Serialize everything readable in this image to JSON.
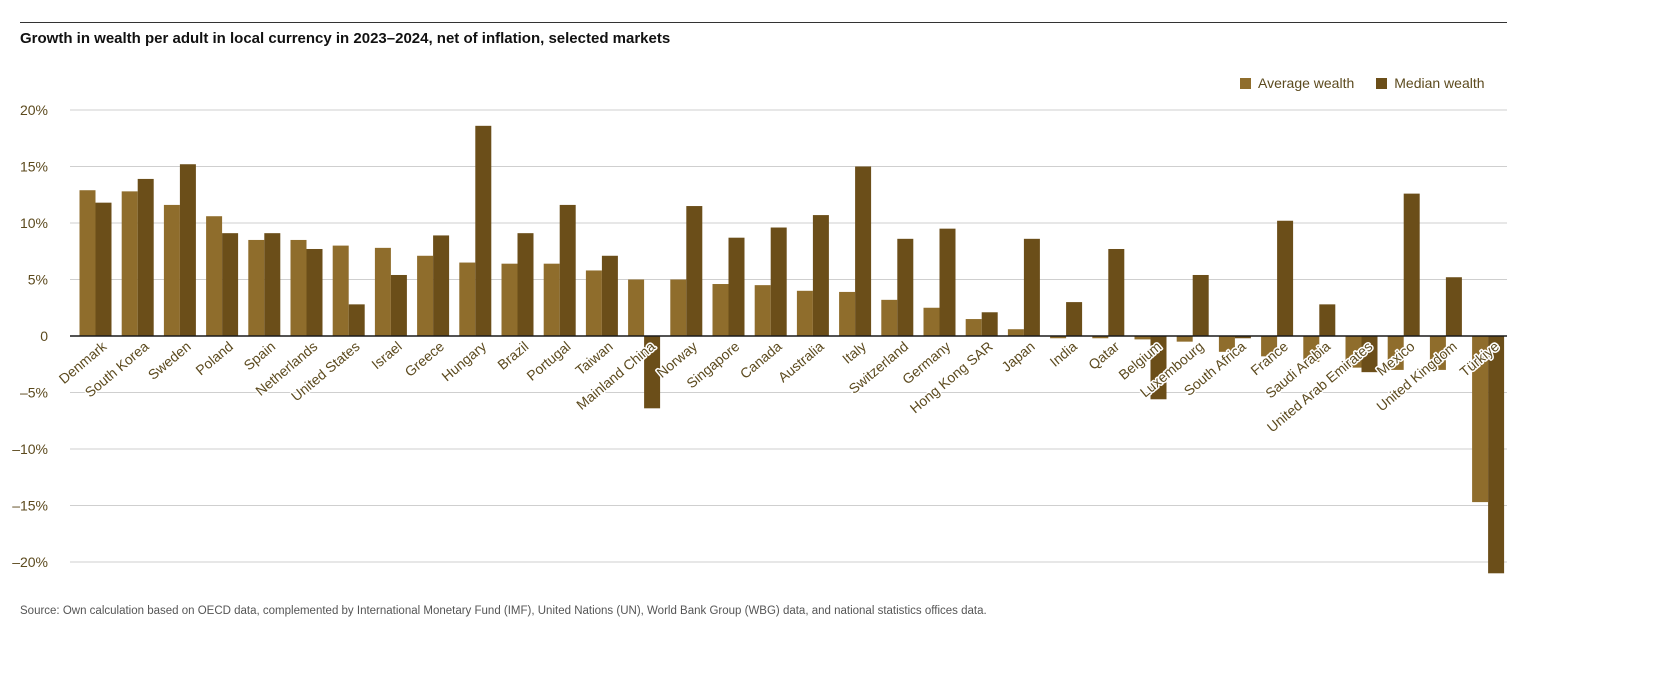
{
  "title": "Growth in wealth per adult in local currency in 2023–2024, net of inflation, selected markets",
  "source": "Source: Own calculation based on OECD data, complemented by International Monetary Fund (IMF), United Nations (UN), World Bank Group (WBG) data, and national statistics offices data.",
  "colors": {
    "average": "#8f6d2c",
    "median": "#6b4e19",
    "grid": "#cfcfcf",
    "label": "#5c4a1e"
  },
  "chart_data": {
    "type": "bar",
    "ylim": [
      -21,
      20
    ],
    "yticks": [
      {
        "value": 20,
        "label": "20%"
      },
      {
        "value": 15,
        "label": "15%"
      },
      {
        "value": 10,
        "label": "10%"
      },
      {
        "value": 5,
        "label": "5%"
      },
      {
        "value": 0,
        "label": "0"
      },
      {
        "value": -5,
        "label": "–5%"
      },
      {
        "value": -10,
        "label": "–10%"
      },
      {
        "value": -15,
        "label": "–15%"
      },
      {
        "value": -20,
        "label": "–20%"
      }
    ],
    "grid": true,
    "legend": "top-right",
    "categories": [
      "Denmark",
      "South Korea",
      "Sweden",
      "Poland",
      "Spain",
      "Netherlands",
      "United States",
      "Israel",
      "Greece",
      "Hungary",
      "Brazil",
      "Portugal",
      "Taiwan",
      "Mainland China",
      "Norway",
      "Singapore",
      "Canada",
      "Australia",
      "Italy",
      "Switzerland",
      "Germany",
      "Hong Kong SAR",
      "Japan",
      "India",
      "Qatar",
      "Belgium",
      "Luxembourg",
      "South Africa",
      "France",
      "Saudi Arabia",
      "United Arab Emirates",
      "Mexico",
      "United Kingdom",
      "Türkiye"
    ],
    "series": [
      {
        "name": "Average wealth",
        "values": [
          12.9,
          12.8,
          11.6,
          10.6,
          8.5,
          8.5,
          8.0,
          7.8,
          7.1,
          6.5,
          6.4,
          6.4,
          5.8,
          5.0,
          5.0,
          4.6,
          4.5,
          4.0,
          3.9,
          3.2,
          2.5,
          1.5,
          0.6,
          -0.2,
          -0.2,
          -0.3,
          -0.5,
          -1.4,
          -1.8,
          -2.3,
          -2.8,
          -3.0,
          -3.0,
          -14.7
        ]
      },
      {
        "name": "Median wealth",
        "values": [
          11.8,
          13.9,
          15.2,
          9.1,
          9.1,
          7.7,
          2.8,
          5.4,
          8.9,
          18.6,
          9.1,
          11.6,
          7.1,
          -6.4,
          11.5,
          8.7,
          9.6,
          10.7,
          15.0,
          8.6,
          9.5,
          2.1,
          8.6,
          3.0,
          7.7,
          -5.6,
          5.4,
          -0.2,
          10.2,
          2.8,
          -3.2,
          12.6,
          5.2,
          -21.0
        ]
      }
    ]
  }
}
